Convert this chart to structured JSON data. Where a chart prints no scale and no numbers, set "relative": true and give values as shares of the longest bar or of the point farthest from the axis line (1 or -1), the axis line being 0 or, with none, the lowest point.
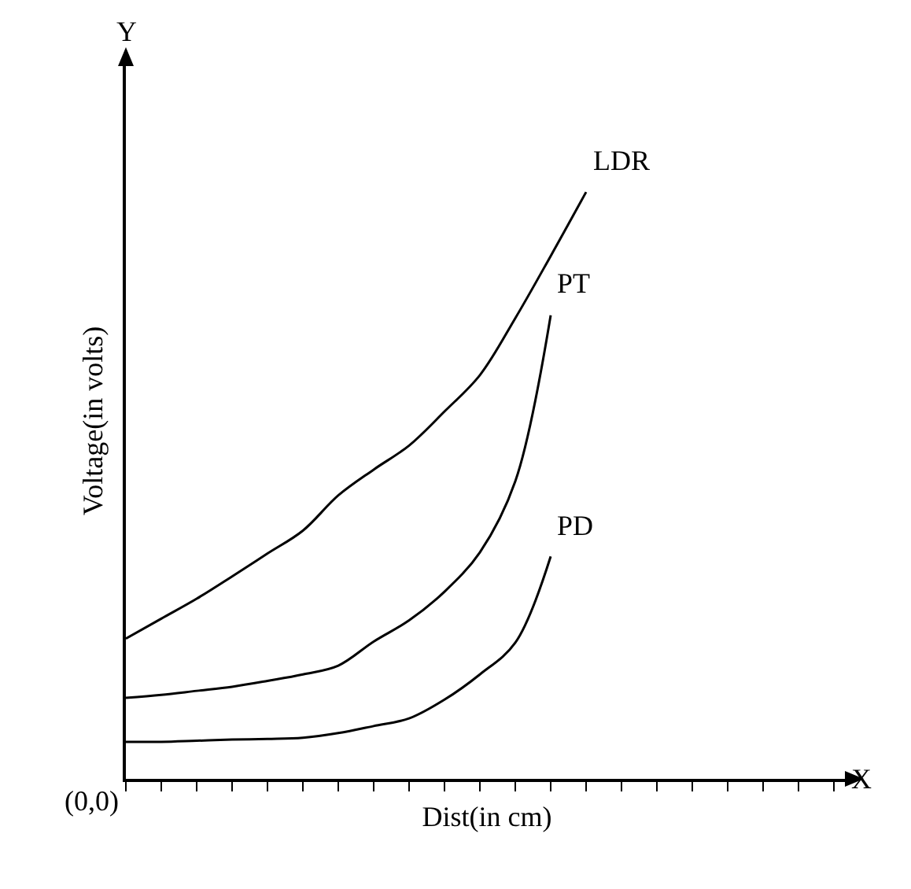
{
  "chart_data": {
    "type": "line",
    "relative": true,
    "xlabel": "Dist(in cm)",
    "ylabel": "Voltage(in volts)",
    "annotations": [
      "Y",
      "X",
      "(0,0)"
    ],
    "categories": [
      null,
      null,
      null,
      null,
      null,
      null,
      null,
      null,
      null,
      null,
      null,
      null,
      null,
      null,
      null,
      null,
      null,
      null,
      null,
      null,
      null
    ],
    "series": [
      {
        "name": "LDR",
        "color": "#000000",
        "values": [
          0.239,
          0.273,
          0.307,
          0.345,
          0.384,
          0.423,
          0.483,
          0.527,
          0.568,
          0.626,
          0.688,
          0.785,
          0.891,
          1,
          null,
          null,
          null,
          null,
          null,
          null,
          null
        ]
      },
      {
        "name": "PT",
        "color": "#000000",
        "values": [
          0.138,
          0.143,
          0.15,
          0.157,
          0.167,
          0.178,
          0.193,
          0.234,
          0.27,
          0.319,
          0.386,
          0.507,
          0.79,
          null,
          null,
          null,
          null,
          null,
          null,
          null,
          null
        ]
      },
      {
        "name": "PD",
        "color": "#000000",
        "values": [
          0.063,
          0.063,
          0.065,
          0.067,
          0.068,
          0.07,
          0.078,
          0.09,
          0.103,
          0.135,
          0.178,
          0.232,
          0.379,
          null,
          null,
          null,
          null,
          null,
          null,
          null,
          null
        ]
      }
    ],
    "grid": false,
    "legend": false,
    "marker": "none",
    "line_style": "solid"
  }
}
